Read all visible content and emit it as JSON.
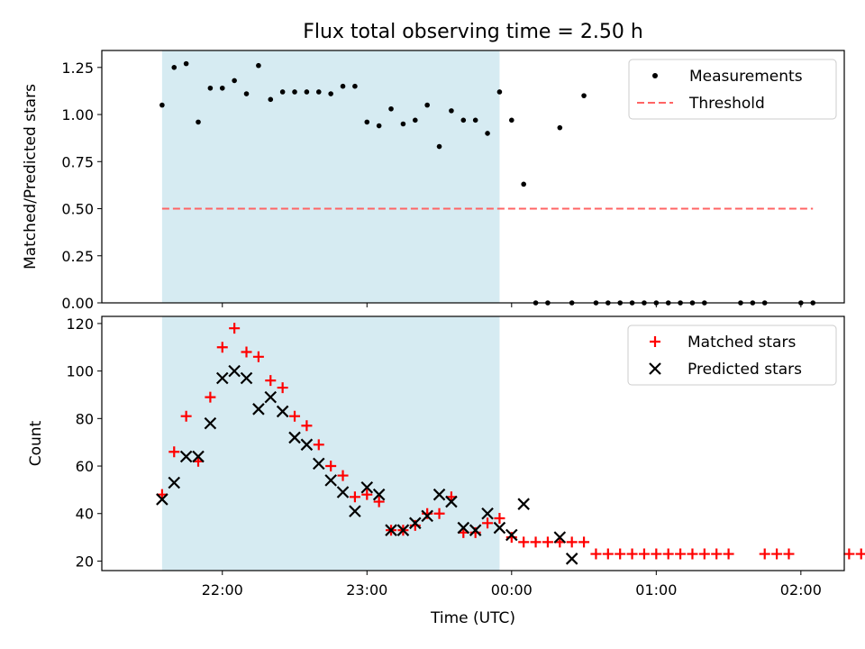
{
  "chart_data": [
    {
      "type": "scatter",
      "title": "Flux total observing time = 2.50 h",
      "xlabel": "",
      "ylabel": "Matched/Predicted stars",
      "ylim": [
        0,
        1.34
      ],
      "yticks": [
        "0.00",
        "0.25",
        "0.50",
        "0.75",
        "1.00",
        "1.25"
      ],
      "highlight_span": {
        "start": "21:35",
        "end": "23:55",
        "color": "#add8e6"
      },
      "legend": {
        "position": "top-right",
        "entries": [
          "Measurements",
          "Threshold"
        ]
      },
      "threshold": {
        "name": "Threshold",
        "value": 0.5,
        "x_start": "21:35",
        "x_end": "02:05",
        "color": "#ff6464"
      },
      "series": [
        {
          "name": "Measurements",
          "color": "#000000",
          "points": [
            [
              "21:35",
              1.05
            ],
            [
              "21:40",
              1.25
            ],
            [
              "21:45",
              1.27
            ],
            [
              "21:50",
              0.96
            ],
            [
              "21:55",
              1.14
            ],
            [
              "22:00",
              1.14
            ],
            [
              "22:05",
              1.18
            ],
            [
              "22:10",
              1.11
            ],
            [
              "22:15",
              1.26
            ],
            [
              "22:20",
              1.08
            ],
            [
              "22:25",
              1.12
            ],
            [
              "22:30",
              1.12
            ],
            [
              "22:35",
              1.12
            ],
            [
              "22:40",
              1.12
            ],
            [
              "22:45",
              1.11
            ],
            [
              "22:50",
              1.15
            ],
            [
              "22:55",
              1.15
            ],
            [
              "23:00",
              0.96
            ],
            [
              "23:05",
              0.94
            ],
            [
              "23:10",
              1.03
            ],
            [
              "23:15",
              0.95
            ],
            [
              "23:20",
              0.97
            ],
            [
              "23:25",
              1.05
            ],
            [
              "23:30",
              0.83
            ],
            [
              "23:35",
              1.02
            ],
            [
              "23:40",
              0.97
            ],
            [
              "23:45",
              0.97
            ],
            [
              "23:50",
              0.9
            ],
            [
              "23:55",
              1.12
            ],
            [
              "00:00",
              0.97
            ],
            [
              "00:05",
              0.63
            ],
            [
              "00:10",
              0.0
            ],
            [
              "00:15",
              0.0
            ],
            [
              "00:20",
              0.93
            ],
            [
              "00:25",
              0.0
            ],
            [
              "00:30",
              1.1
            ],
            [
              "00:35",
              0.0
            ],
            [
              "00:40",
              0.0
            ],
            [
              "00:45",
              0.0
            ],
            [
              "00:50",
              0.0
            ],
            [
              "00:55",
              0.0
            ],
            [
              "01:00",
              0.0
            ],
            [
              "01:05",
              0.0
            ],
            [
              "01:10",
              0.0
            ],
            [
              "01:15",
              0.0
            ],
            [
              "01:20",
              0.0
            ],
            [
              "01:35",
              0.0
            ],
            [
              "01:40",
              0.0
            ],
            [
              "01:45",
              0.0
            ],
            [
              "02:00",
              0.0
            ],
            [
              "02:05",
              0.0
            ]
          ]
        }
      ]
    },
    {
      "type": "scatter",
      "title": "",
      "xlabel": "Time (UTC)",
      "ylabel": "Count",
      "ylim": [
        16,
        123
      ],
      "yticks": [
        "20",
        "40",
        "60",
        "80",
        "100",
        "120"
      ],
      "xticks": [
        "22:00",
        "23:00",
        "00:00",
        "01:00",
        "02:00"
      ],
      "highlight_span": {
        "start": "21:35",
        "end": "23:55",
        "color": "#add8e6"
      },
      "legend": {
        "position": "top-right",
        "entries": [
          "Matched stars",
          "Predicted stars"
        ]
      },
      "series": [
        {
          "name": "Matched stars",
          "marker": "plus",
          "color": "#ff0000",
          "points": [
            [
              "21:35",
              48
            ],
            [
              "21:40",
              66
            ],
            [
              "21:45",
              81
            ],
            [
              "21:50",
              62
            ],
            [
              "21:55",
              89
            ],
            [
              "22:00",
              110
            ],
            [
              "22:05",
              118
            ],
            [
              "22:10",
              108
            ],
            [
              "22:15",
              106
            ],
            [
              "22:20",
              96
            ],
            [
              "22:25",
              93
            ],
            [
              "22:30",
              81
            ],
            [
              "22:35",
              77
            ],
            [
              "22:40",
              69
            ],
            [
              "22:45",
              60
            ],
            [
              "22:50",
              56
            ],
            [
              "22:55",
              47
            ],
            [
              "23:00",
              48
            ],
            [
              "23:05",
              45
            ],
            [
              "23:10",
              33
            ],
            [
              "23:15",
              33
            ],
            [
              "23:20",
              35
            ],
            [
              "23:25",
              40
            ],
            [
              "23:30",
              40
            ],
            [
              "23:35",
              47
            ],
            [
              "23:40",
              32
            ],
            [
              "23:45",
              32
            ],
            [
              "23:50",
              36
            ],
            [
              "23:55",
              38
            ],
            [
              "00:00",
              30
            ],
            [
              "00:05",
              28
            ],
            [
              "00:10",
              28
            ],
            [
              "00:15",
              28
            ],
            [
              "00:20",
              28
            ],
            [
              "00:25",
              28
            ],
            [
              "00:30",
              28
            ],
            [
              "00:35",
              23
            ],
            [
              "00:40",
              23
            ],
            [
              "00:45",
              23
            ],
            [
              "00:50",
              23
            ],
            [
              "00:55",
              23
            ],
            [
              "01:00",
              23
            ],
            [
              "01:05",
              23
            ],
            [
              "01:10",
              23
            ],
            [
              "01:15",
              23
            ],
            [
              "01:20",
              23
            ],
            [
              "01:25",
              23
            ],
            [
              "01:30",
              23
            ],
            [
              "01:45",
              23
            ],
            [
              "01:50",
              23
            ],
            [
              "01:55",
              23
            ],
            [
              "02:20",
              23
            ],
            [
              "02:25",
              23
            ]
          ]
        },
        {
          "name": "Predicted stars",
          "marker": "x",
          "color": "#000000",
          "points": [
            [
              "21:35",
              46
            ],
            [
              "21:40",
              53
            ],
            [
              "21:45",
              64
            ],
            [
              "21:50",
              64
            ],
            [
              "21:55",
              78
            ],
            [
              "22:00",
              97
            ],
            [
              "22:05",
              100
            ],
            [
              "22:10",
              97
            ],
            [
              "22:15",
              84
            ],
            [
              "22:20",
              89
            ],
            [
              "22:25",
              83
            ],
            [
              "22:30",
              72
            ],
            [
              "22:35",
              69
            ],
            [
              "22:40",
              61
            ],
            [
              "22:45",
              54
            ],
            [
              "22:50",
              49
            ],
            [
              "22:55",
              41
            ],
            [
              "23:00",
              51
            ],
            [
              "23:05",
              48
            ],
            [
              "23:10",
              33
            ],
            [
              "23:15",
              33
            ],
            [
              "23:20",
              36
            ],
            [
              "23:25",
              39
            ],
            [
              "23:30",
              48
            ],
            [
              "23:35",
              45
            ],
            [
              "23:40",
              34
            ],
            [
              "23:45",
              33
            ],
            [
              "23:50",
              40
            ],
            [
              "23:55",
              34
            ],
            [
              "00:00",
              31
            ],
            [
              "00:05",
              44
            ],
            [
              "00:20",
              30
            ],
            [
              "00:25",
              21
            ]
          ]
        }
      ]
    }
  ]
}
